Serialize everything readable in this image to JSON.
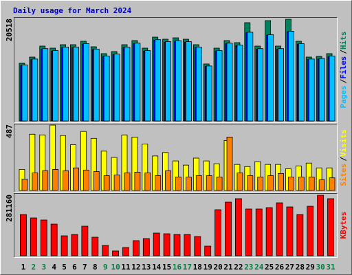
{
  "title": "Daily usage for March 2024",
  "chart_data": [
    {
      "type": "bar",
      "legend_separator": "/",
      "ylim": [
        0,
        20518
      ],
      "yticks": [
        20518
      ],
      "series": [
        {
          "name": "Hits",
          "color": "#00805c",
          "values": [
            11645,
            12893,
            15110,
            14695,
            15389,
            15389,
            16082,
            14972,
            13586,
            14002,
            15389,
            16220,
            14695,
            16914,
            16497,
            16775,
            16497,
            15389,
            11507,
            14695,
            16220,
            15804,
            19825,
            15110,
            20240,
            15110,
            20518,
            16082,
            12893,
            13031,
            13586
          ]
        },
        {
          "name": "Files",
          "color": "#0000ff",
          "values": [
            11200,
            12400,
            14500,
            14100,
            14800,
            14800,
            15500,
            14400,
            13000,
            13400,
            14800,
            15600,
            14100,
            16300,
            15900,
            16100,
            15900,
            14800,
            11000,
            14100,
            15600,
            15200,
            17800,
            14500,
            17300,
            14500,
            18000,
            15500,
            12400,
            12500,
            13000
          ]
        },
        {
          "name": "Pages",
          "color": "#00c0ff",
          "values": [
            11300,
            12500,
            14600,
            14200,
            14900,
            14900,
            15600,
            14500,
            13100,
            13500,
            14900,
            15700,
            14200,
            16400,
            16000,
            16200,
            16000,
            14900,
            11100,
            14200,
            15700,
            15300,
            17900,
            14600,
            17400,
            14600,
            18100,
            15600,
            12500,
            12600,
            13100
          ]
        }
      ]
    },
    {
      "type": "bar",
      "legend_separator": "/",
      "ylim": [
        0,
        487
      ],
      "yticks": [
        487
      ],
      "series": [
        {
          "name": "Visits",
          "color": "#ffff00",
          "values": [
            157,
            419,
            414,
            487,
            409,
            341,
            440,
            388,
            293,
            246,
            414,
            398,
            346,
            257,
            283,
            220,
            189,
            241,
            220,
            199,
            372,
            194,
            178,
            215,
            194,
            194,
            162,
            183,
            204,
            168,
            168
          ]
        },
        {
          "name": "Sites",
          "color": "#ff8000",
          "values": [
            84,
            131,
            147,
            157,
            147,
            168,
            152,
            141,
            110,
            115,
            131,
            136,
            131,
            110,
            147,
            100,
            100,
            110,
            110,
            100,
            398,
            131,
            110,
            100,
            110,
            126,
            100,
            100,
            100,
            79,
            94
          ]
        }
      ]
    },
    {
      "type": "bar",
      "ylim": [
        0,
        281160
      ],
      "yticks": [
        281160
      ],
      "categories": [
        "1",
        "2",
        "3",
        "4",
        "5",
        "6",
        "7",
        "8",
        "9",
        "10",
        "11",
        "12",
        "13",
        "14",
        "15",
        "16",
        "17",
        "18",
        "19",
        "20",
        "21",
        "22",
        "23",
        "24",
        "25",
        "26",
        "27",
        "28",
        "29",
        "30",
        "31"
      ],
      "category_colors": [
        "#000000",
        "#008040",
        "#008040",
        "#000000",
        "#000000",
        "#000000",
        "#000000",
        "#000000",
        "#008040",
        "#008040",
        "#000000",
        "#000000",
        "#000000",
        "#000000",
        "#000000",
        "#008040",
        "#008040",
        "#000000",
        "#000000",
        "#000000",
        "#000000",
        "#000000",
        "#008040",
        "#008040",
        "#000000",
        "#000000",
        "#000000",
        "#000000",
        "#000000",
        "#008040",
        "#008040"
      ],
      "series": [
        {
          "name": "KBytes",
          "color": "#ff0000",
          "values": [
            191700,
            175725,
            166140,
            146970,
            92655,
            99045,
            137385,
            86265,
            47925,
            22365,
            38340,
            70290,
            79875,
            105435,
            102240,
            99045,
            99045,
            89460,
            44730,
            214065,
            249210,
            265185,
            217260,
            217260,
            223650,
            246015,
            226845,
            191700,
            230040,
            281160,
            265185
          ]
        }
      ]
    }
  ]
}
